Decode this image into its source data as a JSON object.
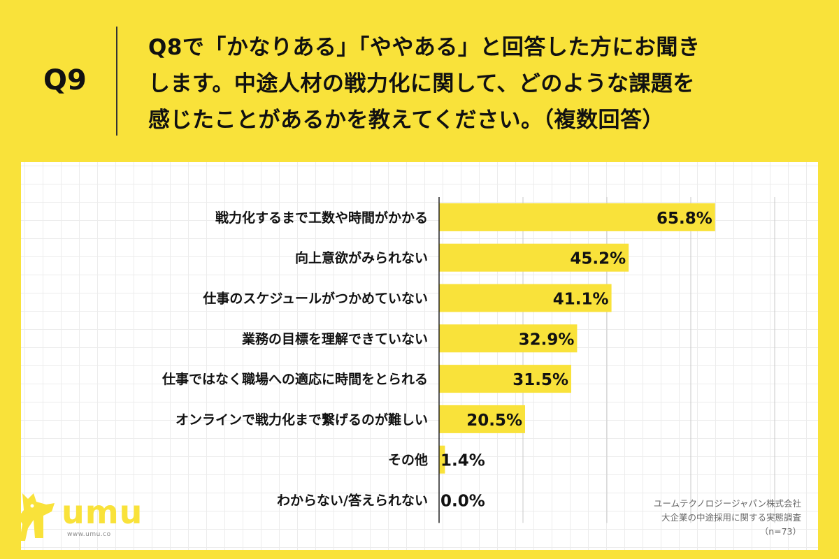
{
  "header": {
    "qnum": "Q9",
    "question_lines": [
      "Q8で「かなりある」「ややある」と回答した方にお聞き",
      "します。中途人材の戦力化に関して、どのような課題を",
      "感じたことがあるかを教えてください。（複数回答）"
    ]
  },
  "footer": {
    "company": "ユームテクノロジージャパン株式会社",
    "survey": "大企業の中途採用に関する実態調査",
    "n": "（n=73）"
  },
  "logo": {
    "word": "umu",
    "url": "www.umu.co"
  },
  "colors": {
    "background": "#F9E23A",
    "bar": "#F9E23A",
    "panel": "#FFFFFF"
  },
  "chart_data": {
    "type": "bar",
    "orientation": "horizontal",
    "categories": [
      "戦力化するまで工数や時間がかかる",
      "向上意欲がみられない",
      "仕事のスケジュールがつかめていない",
      "業務の目標を理解できていない",
      "仕事ではなく職場への適応に時間をとられる",
      "オンラインで戦力化まで繋げるのが難しい",
      "その他",
      "わからない/答えられない"
    ],
    "values": [
      65.8,
      45.2,
      41.1,
      32.9,
      31.5,
      20.5,
      1.4,
      0.0
    ],
    "value_labels": [
      "65.8%",
      "45.2%",
      "41.1%",
      "32.9%",
      "31.5%",
      "20.5%",
      "1.4%",
      "0.0%"
    ],
    "xlim": [
      0,
      80
    ],
    "grid": true
  }
}
